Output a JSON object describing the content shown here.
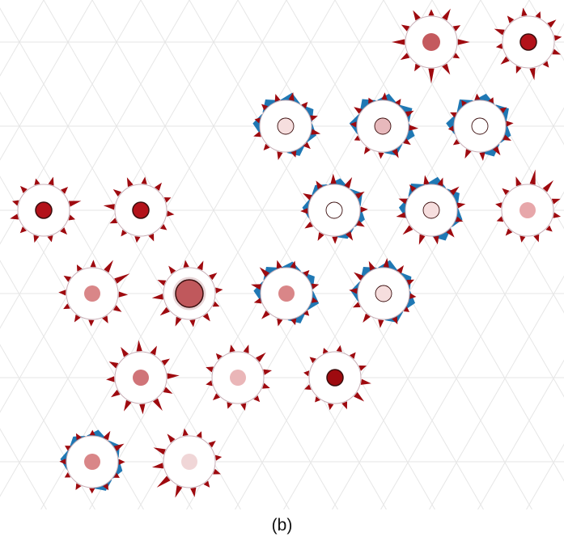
{
  "caption": "(b)",
  "colors": {
    "grid": "#e6e6e6",
    "red_spike": "#9e0a0f",
    "blue_spike": "#1f78b4",
    "ring": "#c8b0b8",
    "node_fill": "#ffffff",
    "core_stroke": "#3a0d0d"
  },
  "nodes": [
    {
      "id": "r0c0",
      "row": 0,
      "col": 0,
      "core": "#c45a5e",
      "core_size": "large",
      "red": [
        0.9,
        0.3,
        0.8,
        1.2,
        0.4,
        0.6,
        1.0,
        0.5,
        0.7,
        0.3,
        0.9,
        0.4
      ],
      "blue": []
    },
    {
      "id": "r0c1",
      "row": 0,
      "col": 1,
      "core": "#b3121a",
      "core_size": "medium",
      "red": [
        0.5,
        0.3,
        0.9,
        0.4,
        0.6,
        0.3,
        0.7,
        0.4,
        0.5,
        0.3,
        0.6,
        0.4
      ],
      "blue": []
    },
    {
      "id": "r1c0",
      "row": 1,
      "col": 0,
      "core": "#f6dede",
      "core_size": "medium",
      "red": [
        0.4,
        0.3,
        0.5,
        0.3,
        0.4,
        0.2,
        0.3,
        0.4,
        0.5,
        0.3,
        0.4,
        0.6
      ],
      "blue": [
        0.8,
        0.9,
        1.0,
        0.7,
        0.6,
        0.8
      ]
    },
    {
      "id": "r1c1",
      "row": 1,
      "col": 1,
      "core": "#e7b9bc",
      "core_size": "medium",
      "red": [
        0.6,
        0.3,
        0.4,
        0.2,
        0.3,
        0.5,
        0.2,
        0.4,
        0.3,
        0.5,
        0.6,
        0.4
      ],
      "blue": [
        0.9,
        1.0,
        0.8,
        1.1,
        0.9,
        0.7
      ]
    },
    {
      "id": "r1c2",
      "row": 1,
      "col": 2,
      "core": "#ffffff",
      "core_size": "medium",
      "red": [
        0.5,
        0.6,
        0.3,
        0.2,
        0.3,
        0.2,
        0.3,
        0.2,
        0.3,
        0.4,
        0.5,
        0.6
      ],
      "blue": [
        1.0,
        0.9,
        0.8,
        1.0,
        0.7,
        0.9
      ]
    },
    {
      "id": "r2c0",
      "row": 2,
      "col": 0,
      "core": "#b3121a",
      "core_size": "medium",
      "red": [
        0.4,
        0.3,
        0.5,
        0.3,
        0.4,
        0.3,
        0.5,
        0.4,
        0.9,
        0.3,
        0.4,
        0.3
      ],
      "blue": []
    },
    {
      "id": "r2c1",
      "row": 2,
      "col": 1,
      "core": "#b3121a",
      "core_size": "medium",
      "red": [
        0.3,
        0.4,
        0.8,
        0.5,
        0.6,
        0.4,
        0.5,
        0.3,
        0.4,
        0.3,
        0.4,
        0.3
      ],
      "blue": []
    },
    {
      "id": "r2c2",
      "row": 2,
      "col": 2,
      "core": "#ffffff",
      "core_size": "medium",
      "red": [
        0.5,
        0.4,
        0.6,
        0.5,
        0.7,
        0.8,
        0.6,
        0.4,
        0.5,
        0.6,
        0.4,
        0.5
      ],
      "blue": [
        0.6,
        0.5,
        0.7,
        0.8,
        0.6,
        0.5
      ]
    },
    {
      "id": "r2c3",
      "row": 2,
      "col": 3,
      "core": "#f6dede",
      "core_size": "medium",
      "red": [
        0.6,
        0.5,
        0.4,
        0.6,
        0.5,
        0.7,
        0.5,
        0.4,
        0.6,
        0.5,
        0.7,
        0.8
      ],
      "blue": [
        0.7,
        0.9,
        1.0,
        0.8,
        0.7,
        0.9
      ]
    },
    {
      "id": "r2c4",
      "row": 2,
      "col": 4,
      "core": "#e7a7aa",
      "core_size": "medium",
      "red": [
        0.3,
        0.4,
        0.6,
        1.2,
        1.0,
        0.5,
        0.4,
        0.3,
        0.4,
        0.3,
        0.4,
        0.3
      ],
      "blue": []
    },
    {
      "id": "r3c0",
      "row": 3,
      "col": 0,
      "core": "#d98688",
      "core_size": "medium",
      "red": [
        0.4,
        0.3,
        0.4,
        1.0,
        1.3,
        0.6,
        0.5,
        0.4,
        0.3,
        0.4,
        0.3,
        0.4
      ],
      "blue": []
    },
    {
      "id": "r3c1",
      "row": 3,
      "col": 1,
      "core": "#c0585c",
      "core_size": "large",
      "red": [
        0.5,
        0.4,
        0.6,
        0.5,
        0.4,
        0.3,
        0.5,
        0.4,
        0.6,
        0.7,
        0.8,
        0.5
      ],
      "blue": []
    },
    {
      "id": "r3c2",
      "row": 3,
      "col": 2,
      "core": "#d98688",
      "core_size": "medium",
      "red": [
        0.5,
        0.4,
        0.3,
        0.4,
        0.3,
        0.2,
        0.3,
        0.4,
        0.6,
        0.4,
        0.7,
        0.8
      ],
      "blue": [
        0.8,
        0.9,
        0.7,
        0.8,
        1.0,
        0.8
      ]
    },
    {
      "id": "r3c3",
      "row": 3,
      "col": 3,
      "core": "#f6dede",
      "core_size": "medium",
      "red": [
        0.6,
        0.5,
        0.4,
        0.3,
        0.2,
        0.4,
        0.5,
        0.6,
        0.4,
        0.5,
        0.7,
        0.6
      ],
      "blue": [
        0.8,
        0.9,
        1.0,
        0.7,
        0.8,
        0.6
      ]
    },
    {
      "id": "r4c0",
      "row": 4,
      "col": 0,
      "core": "#d07478",
      "core_size": "medium",
      "red": [
        0.6,
        0.5,
        0.9,
        0.6,
        1.0,
        0.7,
        0.8,
        0.6,
        0.5,
        0.6,
        0.7,
        0.8
      ],
      "blue": []
    },
    {
      "id": "r4c1",
      "row": 4,
      "col": 1,
      "core": "#eab6b8",
      "core_size": "medium",
      "red": [
        0.8,
        0.5,
        0.4,
        0.3,
        0.4,
        0.3,
        0.4,
        0.3,
        0.4,
        0.3,
        0.4,
        0.5
      ],
      "blue": []
    },
    {
      "id": "r4c2",
      "row": 4,
      "col": 2,
      "core": "#9e0a0f",
      "core_size": "medium",
      "red": [
        0.4,
        0.7,
        0.8,
        0.4,
        0.3,
        0.2,
        0.3,
        0.2,
        0.3,
        0.2,
        0.3,
        0.3
      ],
      "blue": []
    },
    {
      "id": "r5c0",
      "row": 5,
      "col": 0,
      "core": "#d98688",
      "core_size": "medium",
      "red": [
        0.3,
        0.2,
        0.3,
        0.2,
        0.3,
        0.2,
        0.3,
        0.2,
        0.3,
        0.2,
        0.6,
        0.7
      ],
      "blue": [
        0.6,
        0.5,
        0.7,
        0.6,
        0.5,
        0.6
      ]
    },
    {
      "id": "r5c1",
      "row": 5,
      "col": 1,
      "core": "#f0d6d7",
      "core_size": "medium",
      "red": [
        0.4,
        0.3,
        0.6,
        0.9,
        1.2,
        0.8,
        0.9,
        0.6,
        0.4,
        0.3,
        0.4,
        0.3
      ],
      "blue": []
    }
  ]
}
